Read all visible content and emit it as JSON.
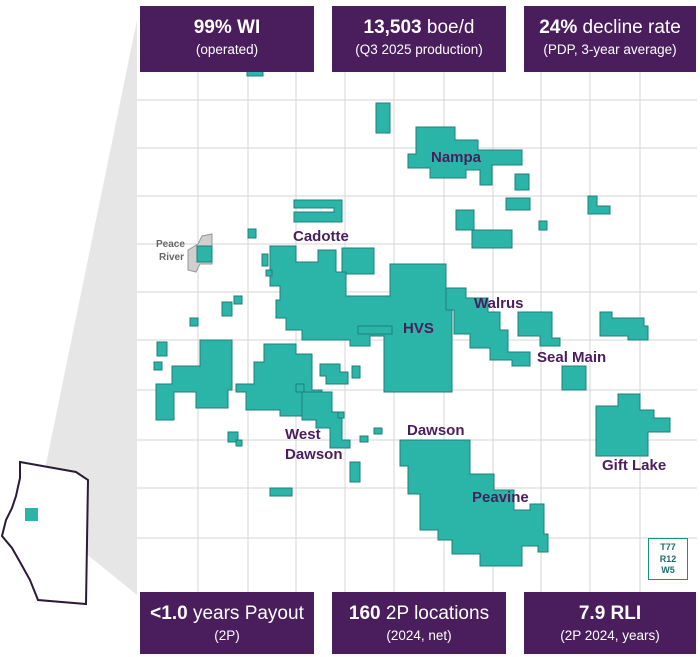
{
  "stats_top": [
    {
      "bold": "99% WI",
      "rest": "",
      "sub": "(operated)"
    },
    {
      "bold": "13,503",
      "rest": " boe/d",
      "sub": "(Q3 2025 production)"
    },
    {
      "bold": "24%",
      "rest": " decline rate",
      "sub": "(PDP, 3-year average)"
    }
  ],
  "stats_bottom": [
    {
      "bold": "<1.0",
      "rest": " years Payout",
      "sub": "(2P)"
    },
    {
      "bold": "160",
      "rest": " 2P locations",
      "sub": "(2024, net)"
    },
    {
      "bold": "7.9 RLI",
      "rest": "",
      "sub": "(2P 2024, years)"
    }
  ],
  "map": {
    "town_label_line1": "Peace",
    "town_label_line2": "River",
    "area_labels": {
      "nampa": "Nampa",
      "cadotte": "Cadotte",
      "walrus": "Walrus",
      "hvs": "HVS",
      "seal_main": "Seal Main",
      "west": "West",
      "dawson_west": "Dawson",
      "dawson": "Dawson",
      "gift_lake": "Gift Lake",
      "peavine": "Peavine"
    },
    "township_box": {
      "line1": "T77",
      "line2": "R12",
      "line3": "W5"
    },
    "colors": {
      "land": "#2bb5a8",
      "land_border": "#1d7f78",
      "stat_box": "#4a1e5d",
      "label": "#4a1e5d"
    }
  }
}
